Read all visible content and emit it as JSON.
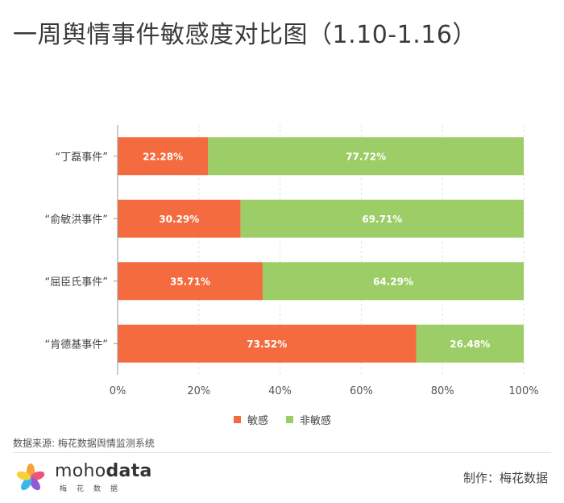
{
  "title": "一周舆情事件敏感度对比图（1.10-1.16）",
  "chart_data": {
    "type": "bar",
    "orientation": "horizontal",
    "stacked": true,
    "categories": [
      "“丁磊事件”",
      "“俞敏洪事件”",
      "“屈臣氏事件”",
      "“肯德基事件”"
    ],
    "series": [
      {
        "name": "敏感",
        "color": "#f46b3f",
        "values": [
          22.28,
          30.29,
          35.71,
          73.52
        ],
        "labels": [
          "22.28%",
          "30.29%",
          "35.71%",
          "73.52%"
        ]
      },
      {
        "name": "非敏感",
        "color": "#9ccd67",
        "values": [
          77.72,
          69.71,
          64.29,
          26.48
        ],
        "labels": [
          "77.72%",
          "69.71%",
          "64.29%",
          "26.48%"
        ]
      }
    ],
    "xlim": [
      0,
      100
    ],
    "xticks": [
      "0%",
      "20%",
      "40%",
      "60%",
      "80%",
      "100%"
    ],
    "grid": "vertical dashed",
    "legend_position": "bottom"
  },
  "legend": [
    {
      "label": "敏感",
      "color": "#f46b3f"
    },
    {
      "label": "非敏感",
      "color": "#9ccd67"
    }
  ],
  "source_text": "数据来源: 梅花数据舆情监测系统",
  "brand": {
    "name_light": "moho",
    "name_bold": "data",
    "sub": "梅花数据"
  },
  "credit": "制作：梅花数据"
}
